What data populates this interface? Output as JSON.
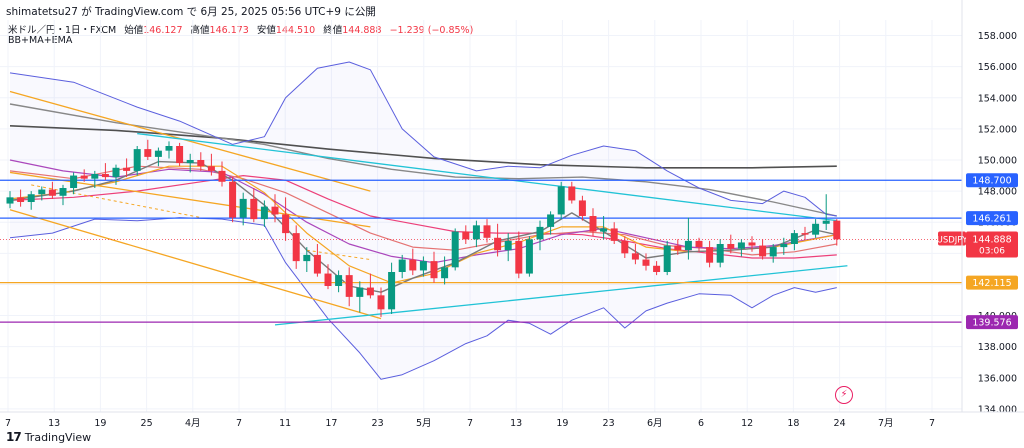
{
  "header": {
    "publisher_line": "shimatetsu27 が TradingView.com で 6月 25, 2025 05:56 UTC+9 に公開",
    "symbol_info": "米ドル／円・1日・FXCM",
    "open_label": "始値",
    "open_value": "146.127",
    "high_label": "高値",
    "high_value": "146.173",
    "low_label": "安値",
    "low_value": "144.510",
    "close_label": "終値",
    "close_value": "144.888",
    "change": "−1.239 (−0.85%)",
    "indicators": "BB+MA+EMA"
  },
  "footer": {
    "brand": "TradingView",
    "logo": "17"
  },
  "colors": {
    "up": "#089981",
    "down": "#f23645",
    "bb": "#5b5fde",
    "gray": "#888888",
    "dark": "#505050",
    "orange": "#f5a623",
    "cyan": "#22c3d6",
    "blue": "#2962ff",
    "purple": "#9c27b0"
  },
  "chart_data": {
    "type": "candlestick",
    "symbol": "USDJPY",
    "ylim": [
      133.8,
      159.0
    ],
    "y_ticks": [
      "158.000",
      "156.000",
      "154.000",
      "152.000",
      "150.000",
      "148.000",
      "146.000",
      "144.000",
      "142.000",
      "140.000",
      "138.000",
      "136.000",
      "134.000"
    ],
    "x_ticks": [
      "7",
      "13",
      "19",
      "25",
      "4月",
      "7",
      "11",
      "17",
      "23",
      "5月",
      "7",
      "13",
      "19",
      "23",
      "6月",
      "6",
      "12",
      "18",
      "24",
      "7月",
      "7"
    ],
    "ohlc": [
      [
        147.2,
        148.0,
        146.9,
        147.6
      ],
      [
        147.6,
        148.1,
        147.0,
        147.3
      ],
      [
        147.3,
        148.0,
        146.8,
        147.8
      ],
      [
        147.8,
        148.3,
        147.4,
        148.1
      ],
      [
        148.1,
        148.6,
        147.5,
        147.7
      ],
      [
        147.7,
        148.4,
        147.1,
        148.2
      ],
      [
        148.2,
        149.2,
        147.8,
        149.0
      ],
      [
        149.0,
        149.4,
        148.6,
        148.8
      ],
      [
        148.8,
        149.3,
        148.2,
        149.1
      ],
      [
        149.1,
        149.8,
        148.7,
        148.9
      ],
      [
        148.9,
        149.7,
        148.4,
        149.5
      ],
      [
        149.5,
        150.1,
        148.9,
        149.3
      ],
      [
        149.3,
        150.9,
        149.0,
        150.7
      ],
      [
        150.7,
        151.3,
        150.0,
        150.2
      ],
      [
        150.2,
        150.8,
        149.6,
        150.6
      ],
      [
        150.6,
        151.2,
        150.1,
        150.9
      ],
      [
        150.9,
        151.1,
        149.6,
        149.8
      ],
      [
        149.8,
        150.4,
        149.2,
        150.0
      ],
      [
        150.0,
        150.5,
        149.3,
        149.6
      ],
      [
        149.6,
        150.4,
        149.0,
        149.3
      ],
      [
        149.3,
        149.9,
        148.3,
        148.6
      ],
      [
        148.6,
        148.9,
        146.0,
        146.3
      ],
      [
        146.3,
        147.9,
        145.8,
        147.5
      ],
      [
        147.5,
        148.2,
        146.0,
        146.2
      ],
      [
        146.2,
        147.4,
        145.7,
        147.0
      ],
      [
        147.0,
        147.8,
        146.0,
        146.5
      ],
      [
        146.5,
        147.6,
        144.8,
        145.3
      ],
      [
        145.3,
        145.8,
        143.0,
        143.5
      ],
      [
        143.5,
        144.4,
        142.8,
        143.9
      ],
      [
        143.9,
        144.6,
        142.5,
        142.7
      ],
      [
        142.7,
        143.3,
        141.7,
        141.9
      ],
      [
        141.9,
        142.9,
        141.5,
        142.6
      ],
      [
        142.6,
        143.1,
        140.6,
        141.2
      ],
      [
        141.2,
        142.2,
        140.2,
        141.8
      ],
      [
        141.8,
        142.7,
        141.1,
        141.3
      ],
      [
        141.3,
        141.8,
        139.9,
        140.4
      ],
      [
        140.4,
        143.4,
        140.1,
        142.8
      ],
      [
        142.8,
        143.9,
        142.4,
        143.6
      ],
      [
        143.6,
        144.3,
        142.6,
        142.9
      ],
      [
        142.9,
        143.8,
        142.5,
        143.5
      ],
      [
        143.5,
        144.1,
        142.1,
        142.4
      ],
      [
        142.4,
        143.8,
        142.0,
        143.1
      ],
      [
        143.1,
        145.6,
        142.9,
        145.4
      ],
      [
        145.4,
        145.8,
        144.6,
        144.9
      ],
      [
        144.9,
        146.1,
        144.4,
        145.8
      ],
      [
        145.8,
        146.2,
        144.7,
        145.0
      ],
      [
        145.0,
        145.9,
        143.8,
        144.2
      ],
      [
        144.2,
        145.3,
        143.5,
        144.8
      ],
      [
        144.8,
        145.4,
        142.4,
        142.7
      ],
      [
        142.7,
        145.1,
        142.5,
        144.9
      ],
      [
        144.9,
        146.1,
        144.2,
        145.7
      ],
      [
        145.7,
        146.7,
        145.2,
        146.5
      ],
      [
        146.5,
        148.6,
        146.2,
        148.3
      ],
      [
        148.3,
        148.6,
        147.2,
        147.4
      ],
      [
        147.4,
        147.7,
        146.1,
        146.4
      ],
      [
        146.4,
        146.9,
        145.1,
        145.4
      ],
      [
        145.4,
        146.4,
        144.9,
        145.6
      ],
      [
        145.6,
        146.0,
        144.6,
        144.8
      ],
      [
        144.8,
        145.1,
        143.7,
        144.0
      ],
      [
        144.0,
        144.6,
        143.3,
        143.6
      ],
      [
        143.6,
        144.0,
        142.9,
        143.2
      ],
      [
        143.2,
        143.5,
        142.6,
        142.8
      ],
      [
        142.8,
        144.8,
        142.6,
        144.5
      ],
      [
        144.5,
        144.9,
        143.9,
        144.2
      ],
      [
        144.2,
        146.3,
        143.6,
        144.8
      ],
      [
        144.8,
        145.0,
        144.1,
        144.4
      ],
      [
        144.4,
        144.8,
        143.1,
        143.4
      ],
      [
        143.4,
        144.9,
        143.1,
        144.6
      ],
      [
        144.6,
        145.2,
        144.0,
        144.3
      ],
      [
        144.3,
        144.9,
        143.8,
        144.7
      ],
      [
        144.7,
        145.1,
        144.1,
        144.5
      ],
      [
        144.5,
        144.9,
        143.6,
        143.8
      ],
      [
        143.8,
        144.6,
        143.4,
        144.4
      ],
      [
        144.4,
        145.0,
        143.9,
        144.6
      ],
      [
        144.6,
        145.5,
        144.2,
        145.3
      ],
      [
        145.3,
        145.7,
        144.9,
        145.2
      ],
      [
        145.2,
        146.2,
        145.0,
        145.9
      ],
      [
        145.9,
        147.8,
        145.5,
        146.1
      ],
      [
        146.1,
        146.2,
        144.5,
        144.9
      ]
    ],
    "bb_upper": [
      [
        0,
        155.6
      ],
      [
        6,
        155.0
      ],
      [
        12,
        153.4
      ],
      [
        16,
        152.5
      ],
      [
        21,
        151.0
      ],
      [
        24,
        151.5
      ],
      [
        26,
        154.0
      ],
      [
        29,
        155.9
      ],
      [
        32,
        156.3
      ],
      [
        34,
        155.8
      ],
      [
        37,
        152.0
      ],
      [
        40,
        150.2
      ],
      [
        44,
        149.3
      ],
      [
        47,
        149.6
      ],
      [
        50,
        149.5
      ],
      [
        53,
        150.3
      ],
      [
        56,
        150.9
      ],
      [
        59,
        150.6
      ],
      [
        62,
        149.3
      ],
      [
        65,
        148.2
      ],
      [
        68,
        147.4
      ],
      [
        71,
        147.2
      ],
      [
        73,
        148.0
      ],
      [
        75,
        147.6
      ],
      [
        77,
        146.5
      ],
      [
        78,
        146.4
      ]
    ],
    "bb_mid": [
      [
        0,
        150.0
      ],
      [
        5,
        149.3
      ],
      [
        10,
        148.9
      ],
      [
        15,
        149.4
      ],
      [
        20,
        149.2
      ],
      [
        24,
        147.8
      ],
      [
        28,
        146.0
      ],
      [
        32,
        144.6
      ],
      [
        36,
        143.8
      ],
      [
        40,
        143.4
      ],
      [
        44,
        143.9
      ],
      [
        48,
        144.3
      ],
      [
        52,
        145.2
      ],
      [
        56,
        145.6
      ],
      [
        60,
        145.0
      ],
      [
        64,
        144.4
      ],
      [
        68,
        144.3
      ],
      [
        72,
        144.5
      ],
      [
        78,
        145.2
      ]
    ],
    "bb_lower": [
      [
        0,
        145.0
      ],
      [
        4,
        145.3
      ],
      [
        8,
        146.2
      ],
      [
        12,
        146.1
      ],
      [
        16,
        146.3
      ],
      [
        20,
        146.2
      ],
      [
        24,
        145.8
      ],
      [
        26,
        143.4
      ],
      [
        28,
        141.6
      ],
      [
        30,
        139.8
      ],
      [
        33,
        137.6
      ],
      [
        35,
        135.9
      ],
      [
        37,
        136.2
      ],
      [
        40,
        137.1
      ],
      [
        43,
        138.2
      ],
      [
        45,
        138.7
      ],
      [
        47,
        139.7
      ],
      [
        49,
        139.5
      ],
      [
        51,
        138.8
      ],
      [
        53,
        139.7
      ],
      [
        56,
        140.5
      ],
      [
        58,
        139.2
      ],
      [
        60,
        140.3
      ],
      [
        62,
        140.8
      ],
      [
        65,
        141.4
      ],
      [
        68,
        141.3
      ],
      [
        70,
        140.5
      ],
      [
        72,
        141.3
      ],
      [
        74,
        141.8
      ],
      [
        76,
        141.5
      ],
      [
        78,
        141.8
      ]
    ],
    "ema_short": [
      [
        0,
        147.4
      ],
      [
        6,
        148.0
      ],
      [
        10,
        148.7
      ],
      [
        14,
        149.9
      ],
      [
        18,
        149.8
      ],
      [
        21,
        148.7
      ],
      [
        24,
        147.1
      ],
      [
        28,
        144.2
      ],
      [
        32,
        141.9
      ],
      [
        35,
        141.5
      ],
      [
        38,
        142.4
      ],
      [
        42,
        143.4
      ],
      [
        46,
        144.8
      ],
      [
        50,
        145.4
      ],
      [
        53,
        146.6
      ],
      [
        56,
        145.4
      ],
      [
        60,
        143.7
      ],
      [
        64,
        144.1
      ],
      [
        68,
        144.2
      ],
      [
        72,
        144.4
      ],
      [
        76,
        145.5
      ],
      [
        78,
        145.2
      ]
    ],
    "ema_mid": [
      [
        0,
        147.5
      ],
      [
        5,
        147.9
      ],
      [
        10,
        148.6
      ],
      [
        15,
        149.6
      ],
      [
        20,
        149.6
      ],
      [
        24,
        147.9
      ],
      [
        28,
        145.3
      ],
      [
        32,
        143.2
      ],
      [
        36,
        142.1
      ],
      [
        40,
        142.7
      ],
      [
        44,
        144.0
      ],
      [
        48,
        144.7
      ],
      [
        52,
        145.7
      ],
      [
        56,
        145.7
      ],
      [
        60,
        144.4
      ],
      [
        64,
        144.1
      ],
      [
        68,
        144.2
      ],
      [
        72,
        144.4
      ],
      [
        78,
        145.2
      ]
    ],
    "sma_a": [
      [
        0,
        149.3
      ],
      [
        6,
        148.8
      ],
      [
        12,
        149.6
      ],
      [
        18,
        149.4
      ],
      [
        22,
        148.8
      ],
      [
        26,
        147.9
      ],
      [
        30,
        146.6
      ],
      [
        34,
        145.3
      ],
      [
        38,
        144.4
      ],
      [
        42,
        144.2
      ],
      [
        46,
        144.7
      ],
      [
        50,
        145.2
      ],
      [
        54,
        145.4
      ],
      [
        58,
        145.2
      ],
      [
        62,
        144.5
      ],
      [
        66,
        144.3
      ],
      [
        70,
        143.9
      ],
      [
        74,
        144.1
      ],
      [
        78,
        144.6
      ]
    ],
    "sma_b": [
      [
        0,
        153.6
      ],
      [
        10,
        152.4
      ],
      [
        18,
        151.6
      ],
      [
        24,
        151.0
      ],
      [
        30,
        150.1
      ],
      [
        36,
        149.4
      ],
      [
        42,
        148.9
      ],
      [
        48,
        148.8
      ],
      [
        54,
        148.9
      ],
      [
        60,
        148.6
      ],
      [
        66,
        148.1
      ],
      [
        72,
        147.3
      ],
      [
        78,
        146.4
      ]
    ],
    "sma_c": [
      [
        0,
        152.2
      ],
      [
        10,
        151.9
      ],
      [
        20,
        151.4
      ],
      [
        30,
        150.7
      ],
      [
        40,
        150.1
      ],
      [
        50,
        149.7
      ],
      [
        60,
        149.5
      ],
      [
        70,
        149.5
      ],
      [
        78,
        149.6
      ]
    ],
    "sma_d": [
      [
        0,
        147.4
      ],
      [
        6,
        147.6
      ],
      [
        12,
        148.0
      ],
      [
        18,
        148.6
      ],
      [
        22,
        149.0
      ],
      [
        26,
        148.7
      ],
      [
        30,
        147.5
      ],
      [
        34,
        146.4
      ],
      [
        38,
        145.9
      ],
      [
        42,
        145.4
      ],
      [
        46,
        145.3
      ],
      [
        50,
        145.3
      ],
      [
        54,
        145.2
      ],
      [
        58,
        144.8
      ],
      [
        62,
        144.3
      ],
      [
        66,
        144.0
      ],
      [
        70,
        143.7
      ],
      [
        74,
        143.7
      ],
      [
        78,
        143.9
      ]
    ],
    "trend_lines": [
      {
        "color": "orange",
        "from": [
          0,
          154.4
        ],
        "to": [
          34,
          148.0
        ]
      },
      {
        "color": "orange",
        "from": [
          0,
          149.2
        ],
        "to": [
          34,
          145.7
        ]
      },
      {
        "color": "orange",
        "from": [
          0,
          146.8
        ],
        "to": [
          35,
          139.8
        ]
      },
      {
        "color": "cyan",
        "from": [
          12,
          151.7
        ],
        "to": [
          78,
          146.1
        ]
      },
      {
        "color": "cyan",
        "from": [
          25,
          139.4
        ],
        "to": [
          79,
          143.2
        ]
      }
    ],
    "dashed_segments": [
      {
        "color": "orange",
        "from": [
          2,
          148.4
        ],
        "to": [
          18,
          146.3
        ]
      },
      {
        "color": "orange",
        "from": [
          28,
          144.2
        ],
        "to": [
          34,
          143.6
        ]
      }
    ],
    "hlines": [
      {
        "value": 148.7,
        "label": "148.700",
        "color": "blue"
      },
      {
        "value": 146.261,
        "label": "146.261",
        "color": "blue"
      },
      {
        "value": 142.115,
        "label": "142.115",
        "color": "orange"
      },
      {
        "value": 139.576,
        "label": "139.576",
        "color": "purple"
      }
    ],
    "last_price": {
      "symbol": "USDJPY",
      "value": "144.888",
      "countdown": "03:06",
      "level": 144.888
    }
  }
}
